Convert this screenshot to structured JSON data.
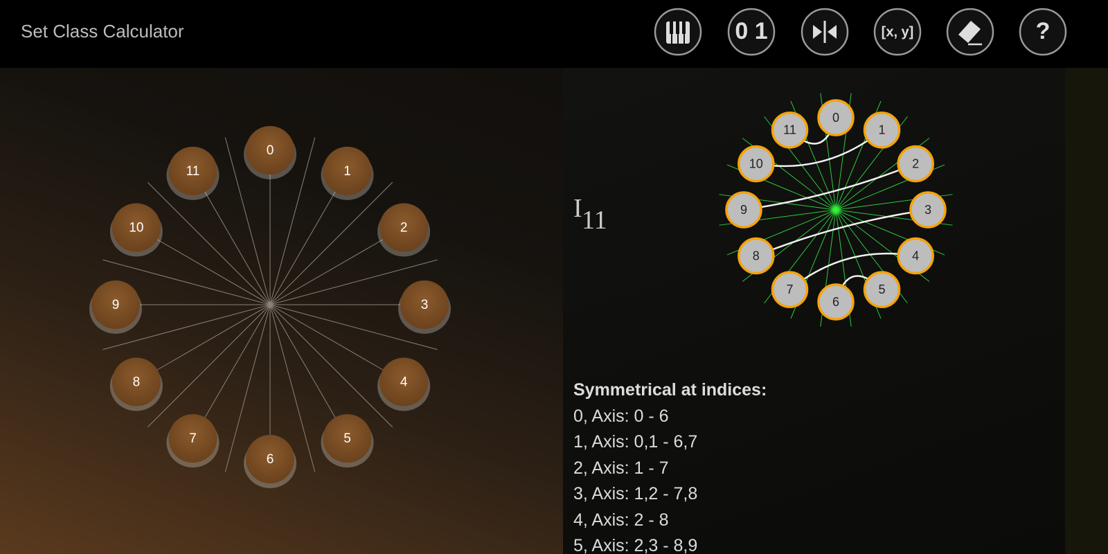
{
  "header": {
    "title": "Set Class Calculator",
    "buttons": [
      "0 1",
      "[x, y]",
      "?"
    ]
  },
  "left_clock": {
    "labels": [
      "0",
      "1",
      "2",
      "3",
      "4",
      "5",
      "6",
      "7",
      "8",
      "9",
      "10",
      "11"
    ]
  },
  "inversion": {
    "label": "I",
    "index": "11"
  },
  "right_clock": {
    "labels": [
      "0",
      "1",
      "2",
      "3",
      "4",
      "5",
      "6",
      "7",
      "8",
      "9",
      "10",
      "11"
    ],
    "connections": [
      [
        11,
        0
      ],
      [
        10,
        1
      ],
      [
        9,
        2
      ],
      [
        8,
        3
      ],
      [
        7,
        4
      ],
      [
        6,
        5
      ]
    ]
  },
  "symmetry": {
    "heading": "Symmetrical at indices:",
    "items": [
      "0, Axis: 0 - 6",
      "1, Axis: 0,1 - 6,7",
      "2, Axis: 1 - 7",
      "3, Axis: 1,2 - 7,8",
      "4, Axis: 2 - 8",
      "5, Axis: 2,3 - 8,9"
    ]
  }
}
